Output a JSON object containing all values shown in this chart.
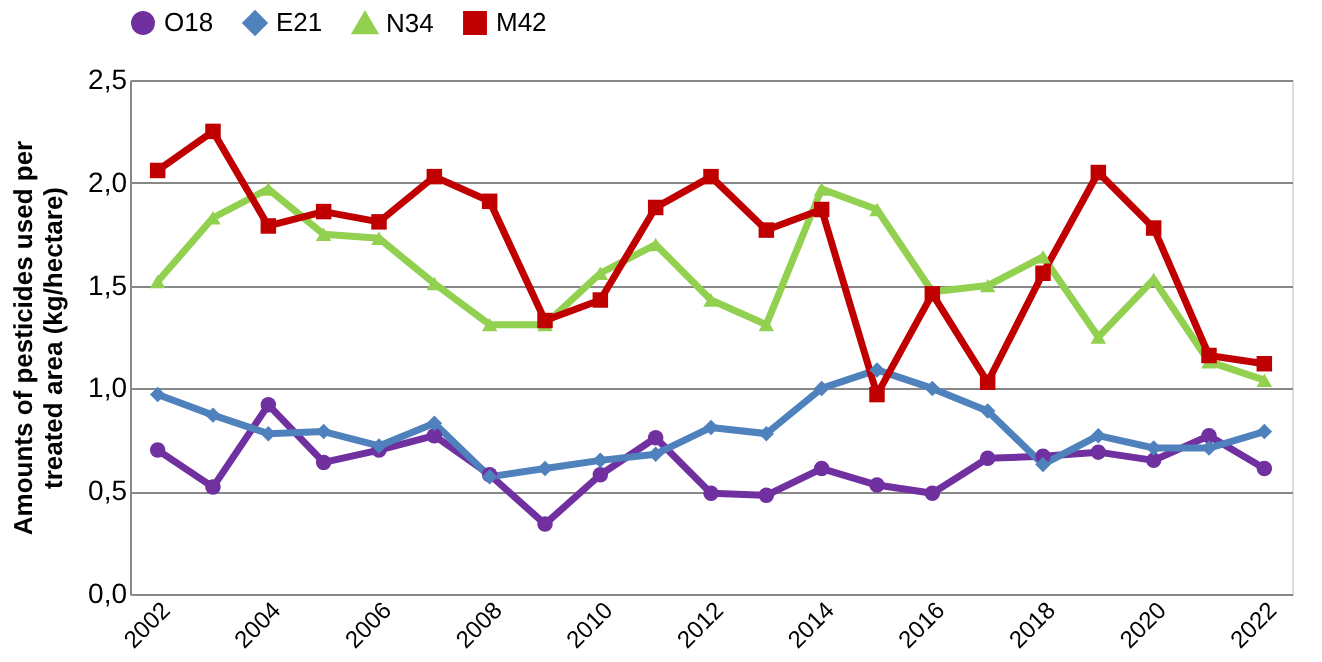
{
  "chart_data": {
    "type": "line",
    "ylabel": "Amounts of pesticides used per\ntreated area (kg/hectare)",
    "x": [
      2002,
      2003,
      2004,
      2005,
      2006,
      2007,
      2008,
      2009,
      2010,
      2011,
      2012,
      2013,
      2014,
      2015,
      2016,
      2017,
      2018,
      2019,
      2020,
      2021,
      2022
    ],
    "xlim": [
      2001.5,
      2022.5
    ],
    "xticks": [
      2002,
      2004,
      2006,
      2008,
      2010,
      2012,
      2014,
      2016,
      2018,
      2020,
      2022
    ],
    "ylim": [
      0,
      2.5
    ],
    "yticks": [
      {
        "value": 0,
        "label": "0,0"
      },
      {
        "value": 0.5,
        "label": "0,5"
      },
      {
        "value": 1,
        "label": "1,0"
      },
      {
        "value": 1.5,
        "label": "1,5"
      },
      {
        "value": 2,
        "label": "2,0"
      },
      {
        "value": 2.5,
        "label": "2,5"
      }
    ],
    "grid": "y",
    "legend": "top",
    "line_style": "solid",
    "series": [
      {
        "name": "O18",
        "color": "#7030a0",
        "marker": "circle",
        "values": [
          0.7,
          0.52,
          0.92,
          0.64,
          0.7,
          0.77,
          0.58,
          0.34,
          0.58,
          0.76,
          0.49,
          0.48,
          0.61,
          0.53,
          0.49,
          0.66,
          0.67,
          0.69,
          0.65,
          0.77,
          0.61
        ]
      },
      {
        "name": "E21",
        "color": "#4f81bd",
        "marker": "diamond",
        "values": [
          0.97,
          0.87,
          0.78,
          0.79,
          0.72,
          0.83,
          0.57,
          0.61,
          0.65,
          0.68,
          0.81,
          0.78,
          1.0,
          1.09,
          1.0,
          0.89,
          0.63,
          0.77,
          0.71,
          0.71,
          0.79
        ]
      },
      {
        "name": "N34",
        "color": "#92d050",
        "marker": "triangle",
        "values": [
          1.52,
          1.83,
          1.97,
          1.75,
          1.73,
          1.51,
          1.31,
          1.31,
          1.56,
          1.7,
          1.43,
          1.31,
          1.97,
          1.87,
          1.47,
          1.5,
          1.64,
          1.25,
          1.53,
          1.13,
          1.04
        ]
      },
      {
        "name": "M42",
        "color": "#c00000",
        "marker": "square",
        "values": [
          2.06,
          2.25,
          1.79,
          1.86,
          1.81,
          2.03,
          1.91,
          1.33,
          1.43,
          1.88,
          2.03,
          1.77,
          1.87,
          0.97,
          1.46,
          1.03,
          1.56,
          2.05,
          1.78,
          1.16,
          1.12
        ]
      }
    ]
  }
}
